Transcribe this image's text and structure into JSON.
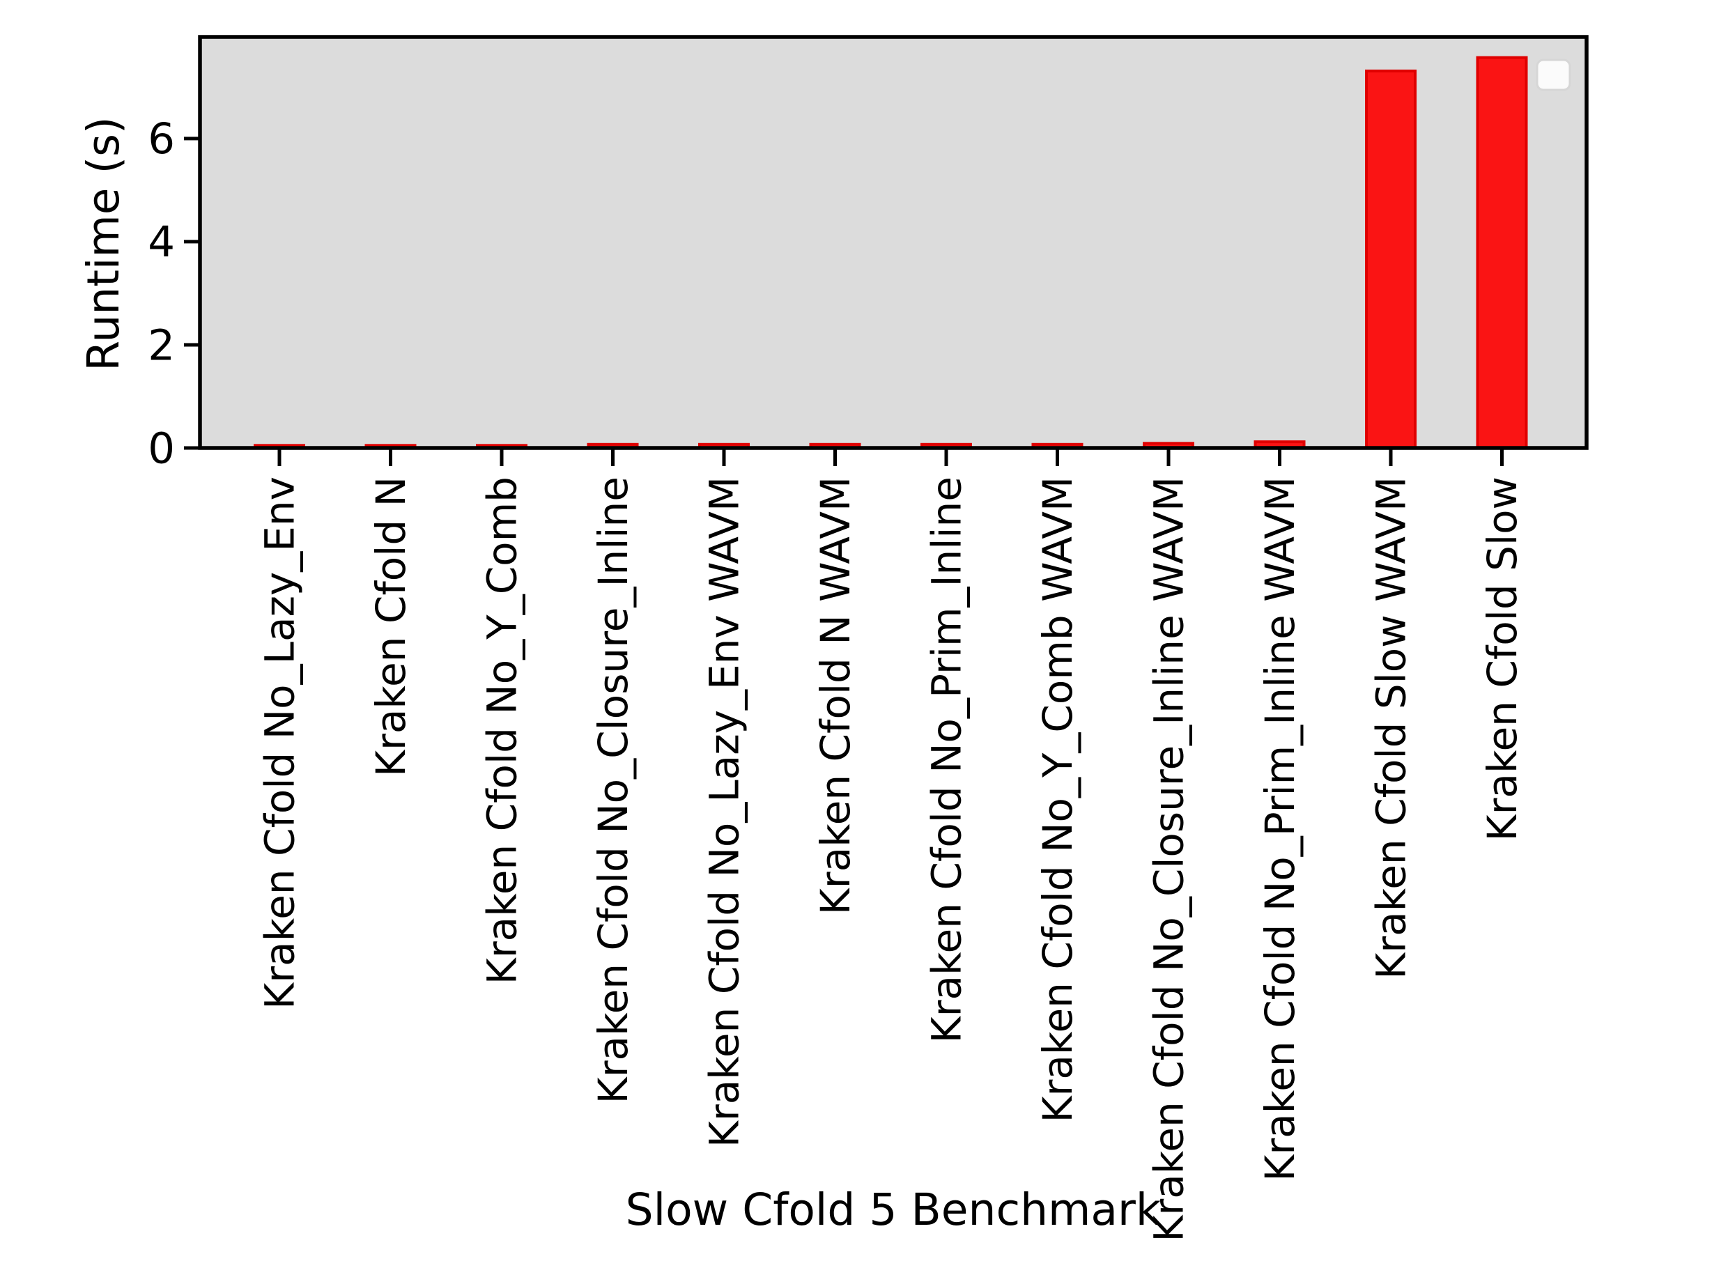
{
  "figure": {
    "background": "#ffffff",
    "plot_background": "#dcdcdc",
    "axis_color": "#000000",
    "bar_fill": "#fa1414",
    "bar_edge": "#e00000",
    "legend_fill": "#fbfbfb",
    "legend_border": "#d6d6d6"
  },
  "chart_data": {
    "type": "bar",
    "title": "",
    "xlabel": "Slow Cfold 5 Benchmark",
    "ylabel": "Runtime (s)",
    "categories": [
      "Kraken Cfold No_Lazy_Env",
      "Kraken Cfold N",
      "Kraken Cfold No_Y_Comb",
      "Kraken Cfold No_Closure_Inline",
      "Kraken Cfold No_Lazy_Env WAVM",
      "Kraken Cfold N WAVM",
      "Kraken Cfold No_Prim_Inline",
      "Kraken Cfold No_Y_Comb WAVM",
      "Kraken Cfold No_Closure_Inline WAVM",
      "Kraken Cfold No_Prim_Inline WAVM",
      "Kraken Cfold Slow WAVM",
      "Kraken Cfold Slow"
    ],
    "values": [
      0.05,
      0.05,
      0.05,
      0.07,
      0.07,
      0.07,
      0.07,
      0.07,
      0.09,
      0.12,
      7.31,
      7.57
    ],
    "yticks": [
      0,
      2,
      4,
      6
    ],
    "ylim": [
      0,
      7.97
    ],
    "grid": false,
    "legend": {
      "visible": true,
      "position": "upper-right",
      "entries": []
    }
  }
}
